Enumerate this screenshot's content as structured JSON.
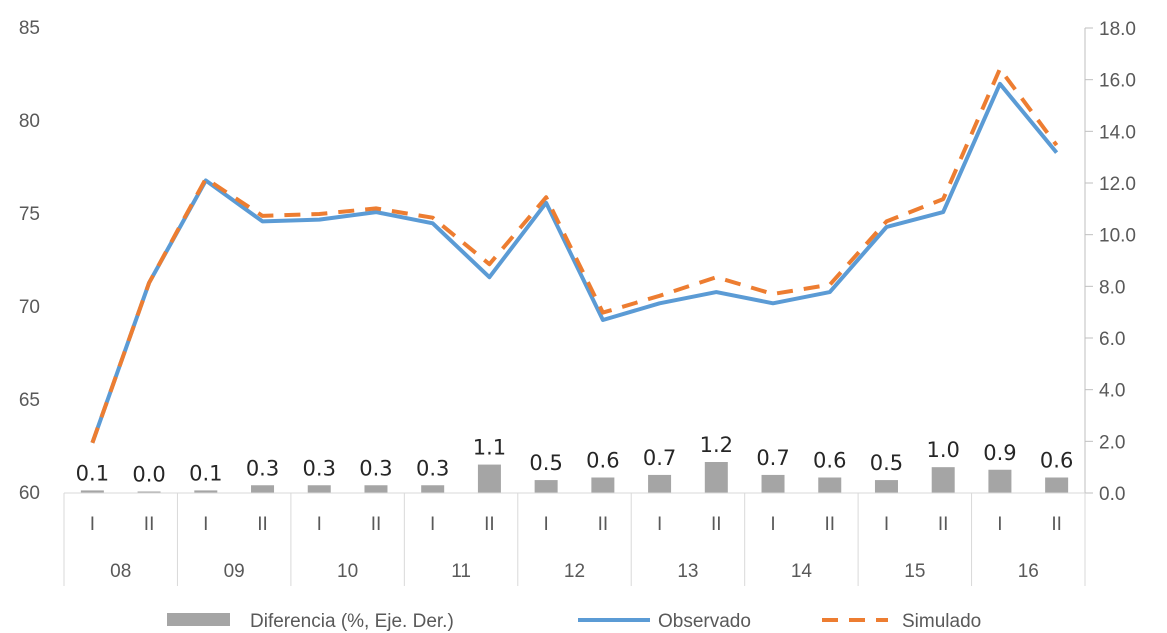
{
  "chart_data": {
    "type": "line",
    "title": "",
    "categories": [
      "08-I",
      "08-II",
      "09-I",
      "09-II",
      "10-I",
      "10-II",
      "11-I",
      "11-II",
      "12-I",
      "12-II",
      "13-I",
      "13-II",
      "14-I",
      "14-II",
      "15-I",
      "15-II",
      "16-I",
      "16-II"
    ],
    "period_labels": [
      "I",
      "II",
      "I",
      "II",
      "I",
      "II",
      "I",
      "II",
      "I",
      "II",
      "I",
      "II",
      "I",
      "II",
      "I",
      "II",
      "I",
      "II"
    ],
    "year_labels": [
      "08",
      "09",
      "10",
      "11",
      "12",
      "13",
      "14",
      "15",
      "16"
    ],
    "y_left": {
      "ylim": [
        60,
        85
      ],
      "ticks": [
        "60",
        "65",
        "70",
        "75",
        "80",
        "85"
      ]
    },
    "y_right": {
      "ylim": [
        0,
        18
      ],
      "ticks": [
        "0.0",
        "2.0",
        "4.0",
        "6.0",
        "8.0",
        "10.0",
        "12.0",
        "14.0",
        "16.0",
        "18.0"
      ]
    },
    "series": [
      {
        "name": "Diferencia (%, Eje. Der.)",
        "type": "bar",
        "axis": "right",
        "color": "#a5a5a5",
        "values": [
          0.1,
          0.0,
          0.1,
          0.3,
          0.3,
          0.3,
          0.3,
          1.1,
          0.5,
          0.6,
          0.7,
          1.2,
          0.7,
          0.6,
          0.5,
          1.0,
          0.9,
          0.6
        ],
        "labels": [
          "0.1",
          "0.0",
          "0.1",
          "0.3",
          "0.3",
          "0.3",
          "0.3",
          "1.1",
          "0.5",
          "0.6",
          "0.7",
          "1.2",
          "0.7",
          "0.6",
          "0.5",
          "1.0",
          "0.9",
          "0.6"
        ]
      },
      {
        "name": "Observado",
        "type": "line",
        "axis": "left",
        "color": "#5b9bd5",
        "values": [
          62.7,
          71.3,
          76.8,
          74.6,
          74.7,
          75.1,
          74.5,
          71.6,
          75.6,
          69.3,
          70.2,
          70.8,
          70.2,
          70.8,
          74.3,
          75.1,
          82.0,
          78.3
        ]
      },
      {
        "name": "Simulado",
        "type": "line",
        "axis": "left",
        "color": "#ed7d31",
        "dashed": true,
        "values": [
          62.7,
          71.3,
          76.9,
          74.9,
          75.0,
          75.3,
          74.8,
          72.3,
          75.9,
          69.7,
          70.6,
          71.6,
          70.7,
          71.2,
          74.6,
          75.8,
          82.8,
          78.7
        ]
      }
    ],
    "legend_position": "bottom"
  }
}
